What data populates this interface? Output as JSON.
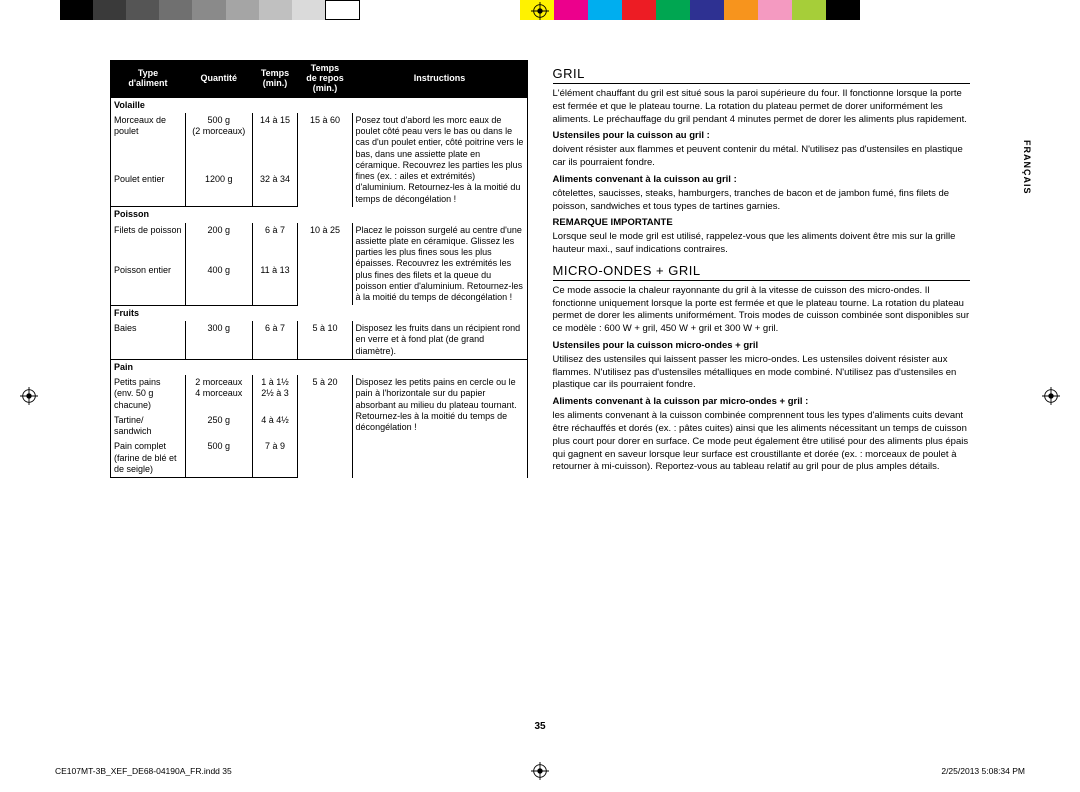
{
  "colorbar_left": [
    "#000000",
    "#3a3a3a",
    "#555555",
    "#707070",
    "#8a8a8a",
    "#a5a5a5",
    "#c0c0c0",
    "#dadada",
    "#ffffff"
  ],
  "colorbar_right": [
    "#fff200",
    "#ec008c",
    "#00aeef",
    "#ed1c24",
    "#00a651",
    "#2e3192",
    "#f7941d",
    "#f49ac1",
    "#a6ce39",
    "#000000"
  ],
  "table": {
    "headers": [
      "Type\nd'aliment",
      "Quantité",
      "Temps\n(min.)",
      "Temps\nde repos\n(min.)",
      "Instructions"
    ],
    "groups": [
      {
        "cat": "Volaille",
        "rows": [
          {
            "c": [
              "Morceaux de poulet",
              "500 g\n(2 morceaux)",
              "14 à 15",
              "15 à 60",
              "Posez tout d'abord les morc eaux de poulet côté peau vers le bas ou dans le cas d'un poulet entier, côté poitrine vers le bas, dans une assiette plate en céramique. Recouvrez les parties les plus fines (ex. : ailes et extrémités) d'aluminium. Retournez-les à la moitié du temps de décongélation !"
            ],
            "merge": true
          },
          {
            "c": [
              "Poulet entier",
              "1200 g",
              "32 à 34",
              "",
              ""
            ]
          }
        ]
      },
      {
        "cat": "Poisson",
        "rows": [
          {
            "c": [
              "Filets de poisson",
              "200 g",
              "6 à 7",
              "10 à 25",
              "Placez le poisson surgelé au centre d'une assiette plate en céramique. Glissez les parties les plus fines sous les plus épaisses. Recouvrez les extrémités les plus fines des filets et la queue du poisson entier d'aluminium. Retournez-les à la moitié du temps de décongélation !"
            ],
            "merge": true
          },
          {
            "c": [
              "Poisson entier",
              "400 g",
              "11 à 13",
              "",
              ""
            ]
          }
        ]
      },
      {
        "cat": "Fruits",
        "rows": [
          {
            "c": [
              "Baies",
              "300 g",
              "6 à 7",
              "5 à 10",
              "Disposez les fruits dans un récipient rond en verre et à fond plat (de grand diamètre)."
            ]
          }
        ]
      },
      {
        "cat": "Pain",
        "rows": [
          {
            "c": [
              "Petits pains (env. 50 g chacune)",
              "2 morceaux\n4 morceaux",
              "1 à 1½\n2½ à 3",
              "5 à 20",
              "Disposez les petits pains en cercle ou le pain à l'horizontale sur du papier absorbant au milieu du plateau tournant. Retournez-les à la moitié du temps de décongélation !"
            ],
            "merge": true
          },
          {
            "c": [
              "Tartine/ sandwich",
              "250 g",
              "4 à 4½",
              "",
              ""
            ]
          },
          {
            "c": [
              "Pain complet (farine de blé et de seigle)",
              "500 g",
              "7 à 9",
              "",
              ""
            ]
          }
        ]
      }
    ]
  },
  "right": {
    "h1": "GRIL",
    "p1": "L'élément chauffant du gril est situé sous la paroi supérieure du four. Il fonctionne lorsque la porte est fermée et que le plateau tourne. La rotation du plateau permet de dorer uniformément les aliments. Le préchauffage du gril pendant 4 minutes permet de dorer les aliments plus rapidement.",
    "b1": "Ustensiles pour la cuisson au gril :",
    "p2": "doivent résister aux flammes et peuvent contenir du métal. N'utilisez pas d'ustensiles en plastique car ils pourraient fondre.",
    "b2": "Aliments convenant à la cuisson au gril :",
    "p3": "côtelettes, saucisses, steaks, hamburgers, tranches de bacon et de jambon fumé, fins filets de poisson, sandwiches et tous types de tartines garnies.",
    "b3": "REMARQUE IMPORTANTE",
    "p4": "Lorsque seul le mode gril est utilisé, rappelez-vous que les aliments doivent être mis sur la grille hauteur maxi., sauf indications contraires.",
    "h2": "MICRO-ONDES + GRIL",
    "p5": "Ce mode associe la chaleur rayonnante du gril à la vitesse de cuisson des micro-ondes. Il fonctionne uniquement lorsque la porte est fermée et que le plateau tourne. La rotation du plateau permet de dorer les aliments uniformément. Trois modes de cuisson combinée sont disponibles sur ce modèle : 600 W + gril, 450 W + gril et 300 W + gril.",
    "b4": "Ustensiles pour la cuisson micro-ondes + gril",
    "p6": "Utilisez des ustensiles qui laissent passer les micro-ondes. Les ustensiles doivent résister aux flammes. N'utilisez pas d'ustensiles métalliques en mode combiné. N'utilisez pas d'ustensiles en plastique car ils pourraient fondre.",
    "b5": "Aliments convenant à la cuisson par micro-ondes + gril :",
    "p7": "les aliments convenant à la cuisson combinée comprennent tous les types d'aliments cuits devant être réchauffés et dorés (ex. : pâtes cuites) ainsi que les aliments nécessitant un temps de cuisson plus court pour dorer en surface. Ce mode peut également être utilisé pour des aliments plus épais qui gagnent en saveur lorsque leur surface est croustillante et dorée (ex. : morceaux de poulet à retourner à mi-cuisson). Reportez-vous au tableau relatif au gril pour de plus amples détails."
  },
  "sidetab": "FRANÇAIS",
  "pagenum": "35",
  "footer_left": "CE107MT-3B_XEF_DE68-04190A_FR.indd   35",
  "footer_right": "2/25/2013   5:08:34 PM"
}
